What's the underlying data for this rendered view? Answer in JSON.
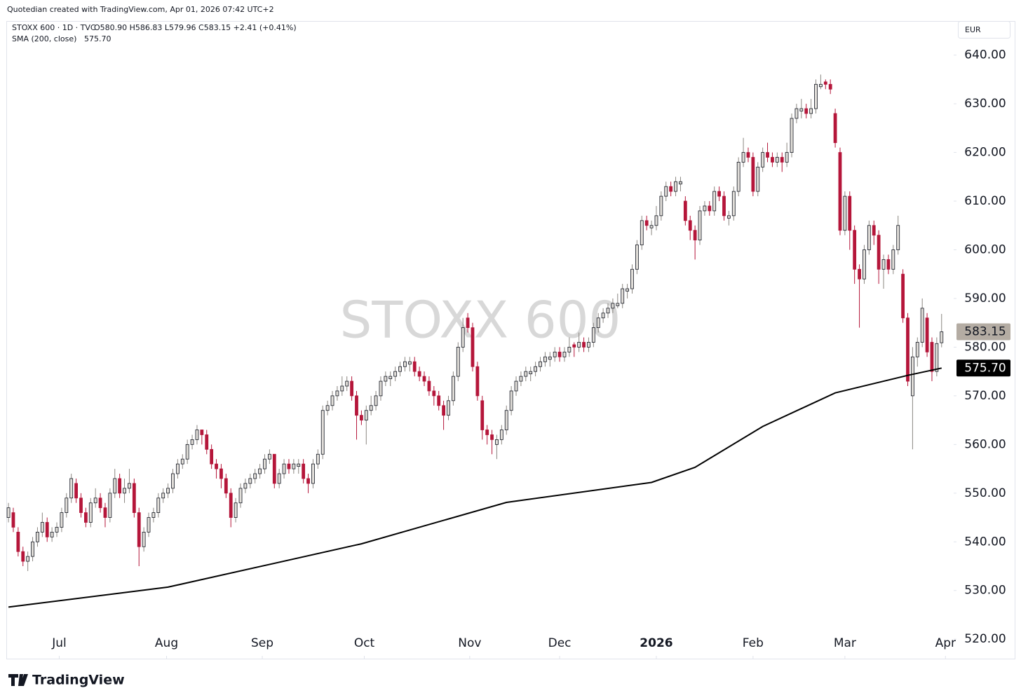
{
  "chart_data": {
    "type": "candlestick",
    "credit": "Quotedian created with TradingView.com, Apr 01, 2026 07:42 UTC+2",
    "symbol": "STOXX 600 · 1D · TVC",
    "ohlc_text": "O580.90 H586.83 L579.96 C583.15 +2.41 (+0.41%)",
    "sma_name": "SMA (200, close)",
    "sma_text": "575.70",
    "currency": "EUR",
    "watermark": "STOXX 600",
    "brand": "TradingView",
    "up_color": "#e1ded9",
    "down_color": "#b5163a",
    "sma_color": "#000000",
    "ylim": [
      516,
      647
    ],
    "yticks": [
      {
        "value": 520,
        "label": "520.00"
      },
      {
        "value": 530,
        "label": "530.00"
      },
      {
        "value": 540,
        "label": "540.00"
      },
      {
        "value": 550,
        "label": "550.00"
      },
      {
        "value": 560,
        "label": "560.00"
      },
      {
        "value": 570,
        "label": "570.00"
      },
      {
        "value": 580,
        "label": "580.00"
      },
      {
        "value": 590,
        "label": "590.00"
      },
      {
        "value": 600,
        "label": "600.00"
      },
      {
        "value": 610,
        "label": "610.00"
      },
      {
        "value": 620,
        "label": "620.00"
      },
      {
        "value": 630,
        "label": "630.00"
      },
      {
        "value": 640,
        "label": "640.00"
      }
    ],
    "xlim": [
      -0.3,
      195.5
    ],
    "xticks": [
      {
        "value": 10.5,
        "label": "Jul"
      },
      {
        "value": 32.7,
        "label": "Aug"
      },
      {
        "value": 52.5,
        "label": "Sep"
      },
      {
        "value": 73.6,
        "label": "Oct"
      },
      {
        "value": 95.4,
        "label": "Nov"
      },
      {
        "value": 114,
        "label": "Dec"
      },
      {
        "value": 134,
        "label": "2026"
      },
      {
        "value": 154,
        "label": "Feb"
      },
      {
        "value": 173,
        "label": "Mar"
      },
      {
        "value": 193.8,
        "label": "Apr"
      }
    ],
    "last_price": {
      "value": 583.15,
      "label": "583.15"
    },
    "sma_last": {
      "value": 575.7,
      "label": "575.70"
    },
    "candles": [
      [
        545,
        548,
        544,
        547
      ],
      [
        546,
        547,
        542,
        543
      ],
      [
        542,
        543,
        537,
        538
      ],
      [
        538,
        539,
        535,
        536
      ],
      [
        536,
        538,
        534,
        537
      ],
      [
        537,
        541,
        536,
        540
      ],
      [
        540,
        543,
        539,
        542
      ],
      [
        542,
        546,
        541,
        544
      ],
      [
        544,
        545,
        540,
        541
      ],
      [
        541,
        543,
        540,
        542
      ],
      [
        542,
        544,
        541,
        543
      ],
      [
        543,
        547,
        542,
        546
      ],
      [
        546,
        550,
        545,
        549
      ],
      [
        549,
        554,
        548,
        553
      ],
      [
        552,
        553,
        548,
        549
      ],
      [
        549,
        550,
        545,
        546
      ],
      [
        546,
        547,
        543,
        544
      ],
      [
        544,
        549,
        543,
        548
      ],
      [
        548,
        551,
        547,
        549
      ],
      [
        549,
        550,
        546,
        547
      ],
      [
        547,
        548,
        543,
        545
      ],
      [
        545,
        551,
        544,
        550
      ],
      [
        550,
        555,
        549,
        553
      ],
      [
        553,
        554,
        549,
        550
      ],
      [
        550,
        553,
        548,
        551
      ],
      [
        551,
        555,
        550,
        552
      ],
      [
        552,
        553,
        545,
        546
      ],
      [
        546,
        547,
        535,
        539
      ],
      [
        539,
        543,
        538,
        542
      ],
      [
        542,
        546,
        541,
        545
      ],
      [
        545,
        547,
        544,
        546
      ],
      [
        546,
        550,
        545,
        549
      ],
      [
        549,
        551,
        548,
        550
      ],
      [
        550,
        552,
        549,
        551
      ],
      [
        551,
        555,
        550,
        554
      ],
      [
        554,
        557,
        553,
        556
      ],
      [
        556,
        558,
        555,
        557
      ],
      [
        557,
        561,
        556,
        560
      ],
      [
        560,
        562,
        559,
        561
      ],
      [
        561,
        564,
        560,
        563
      ],
      [
        563,
        563,
        560,
        562
      ],
      [
        562,
        563,
        558,
        559
      ],
      [
        559,
        560,
        555,
        556
      ],
      [
        556,
        557,
        553,
        555
      ],
      [
        555,
        556,
        551,
        553
      ],
      [
        553,
        554,
        549,
        550
      ],
      [
        550,
        551,
        543,
        545
      ],
      [
        545,
        549,
        544,
        548
      ],
      [
        548,
        552,
        547,
        551
      ],
      [
        551,
        553,
        550,
        552
      ],
      [
        552,
        554,
        551,
        553
      ],
      [
        553,
        555,
        552,
        554
      ],
      [
        554,
        556,
        553,
        555
      ],
      [
        555,
        558,
        554,
        557
      ],
      [
        557,
        559,
        556,
        558
      ],
      [
        558,
        558,
        551,
        552
      ],
      [
        552,
        555,
        551,
        554
      ],
      [
        554,
        557,
        553,
        556
      ],
      [
        556,
        557,
        554,
        555
      ],
      [
        555,
        557,
        554,
        556
      ],
      [
        555.5,
        557,
        554,
        556
      ],
      [
        556,
        557,
        552,
        553
      ],
      [
        553,
        554,
        550,
        552
      ],
      [
        552,
        557,
        551,
        556
      ],
      [
        556,
        559,
        555,
        558
      ],
      [
        558,
        568,
        557,
        567
      ],
      [
        567,
        569,
        566,
        568
      ],
      [
        568,
        571,
        567,
        570
      ],
      [
        570,
        572,
        569,
        571
      ],
      [
        571,
        574,
        570,
        572
      ],
      [
        572,
        574,
        571,
        573
      ],
      [
        573,
        574,
        569,
        570
      ],
      [
        570,
        571,
        561,
        566
      ],
      [
        566,
        567,
        564,
        565
      ],
      [
        565,
        568,
        560,
        567
      ],
      [
        567,
        570,
        566,
        568
      ],
      [
        568,
        571,
        567,
        570
      ],
      [
        570,
        574,
        569,
        573
      ],
      [
        573,
        575,
        572,
        574
      ],
      [
        573.5,
        575,
        572,
        574
      ],
      [
        574,
        576,
        573,
        575
      ],
      [
        575,
        577,
        574,
        576
      ],
      [
        576,
        578,
        575,
        577
      ],
      [
        576.5,
        578,
        575,
        577
      ],
      [
        577,
        578,
        574,
        575
      ],
      [
        575,
        576,
        573,
        574
      ],
      [
        574,
        575,
        572,
        573
      ],
      [
        573,
        574,
        570,
        571
      ],
      [
        571,
        572,
        568,
        570
      ],
      [
        570,
        571,
        567,
        568
      ],
      [
        568,
        569,
        563,
        566
      ],
      [
        566,
        570,
        565,
        569
      ],
      [
        569,
        575,
        568,
        574
      ],
      [
        574,
        581,
        573,
        580
      ],
      [
        580,
        586,
        579,
        584
      ],
      [
        586,
        587,
        583,
        584
      ],
      [
        584,
        585,
        575,
        576
      ],
      [
        576,
        577,
        569,
        570
      ],
      [
        569,
        570,
        561,
        563
      ],
      [
        563,
        564,
        560,
        562
      ],
      [
        562,
        563,
        558,
        561
      ],
      [
        560,
        562,
        557,
        561
      ],
      [
        561,
        564,
        560,
        563
      ],
      [
        563,
        568,
        562,
        567
      ],
      [
        567,
        572,
        566,
        571
      ],
      [
        571,
        574,
        570,
        573
      ],
      [
        573,
        575,
        572,
        574
      ],
      [
        574,
        576,
        573,
        575
      ],
      [
        574.5,
        576,
        573,
        575
      ],
      [
        575,
        577,
        574,
        576
      ],
      [
        576,
        578,
        575,
        577
      ],
      [
        577,
        579,
        576,
        578
      ],
      [
        577.5,
        579,
        576,
        578
      ],
      [
        578,
        580,
        577,
        579
      ],
      [
        579,
        580,
        577,
        578
      ],
      [
        578,
        580,
        577,
        579
      ],
      [
        579,
        582,
        578,
        580
      ],
      [
        580.5,
        581,
        578,
        580
      ],
      [
        580,
        583,
        579,
        581
      ],
      [
        581,
        582,
        579,
        580
      ],
      [
        580,
        582,
        579,
        581
      ],
      [
        581,
        585,
        580,
        584
      ],
      [
        584,
        587,
        583,
        586
      ],
      [
        586,
        588,
        585,
        587
      ],
      [
        587,
        589,
        586,
        588
      ],
      [
        588,
        590,
        587,
        589
      ],
      [
        588.5,
        591,
        588,
        589
      ],
      [
        589,
        593,
        588,
        592
      ],
      [
        591.5,
        593,
        590,
        592
      ],
      [
        592,
        597,
        591,
        596
      ],
      [
        596,
        602,
        595,
        601
      ],
      [
        601,
        607,
        600,
        606
      ],
      [
        606,
        607,
        604,
        605
      ],
      [
        604.5,
        606,
        603,
        605
      ],
      [
        605,
        609,
        604,
        607
      ],
      [
        607,
        612,
        606,
        611
      ],
      [
        611,
        614,
        610,
        613
      ],
      [
        613,
        614,
        611,
        612
      ],
      [
        612,
        615,
        611,
        614
      ],
      [
        613.5,
        615,
        612,
        614
      ],
      [
        610,
        611,
        605,
        606
      ],
      [
        606,
        607,
        602,
        604
      ],
      [
        604,
        605,
        598,
        602
      ],
      [
        602,
        609,
        601,
        608
      ],
      [
        608,
        610,
        607,
        609
      ],
      [
        609,
        610,
        607,
        608
      ],
      [
        608,
        613,
        607,
        612
      ],
      [
        612,
        613,
        610,
        611
      ],
      [
        611,
        612,
        606,
        607
      ],
      [
        606.5,
        608,
        605,
        607
      ],
      [
        607,
        613,
        606,
        612
      ],
      [
        612,
        619,
        611,
        618
      ],
      [
        618,
        623,
        617,
        620
      ],
      [
        620,
        621,
        618,
        619
      ],
      [
        619,
        620,
        611,
        612
      ],
      [
        612,
        618,
        611,
        617
      ],
      [
        617,
        621,
        616,
        620
      ],
      [
        620,
        622,
        618,
        619
      ],
      [
        619,
        620,
        617,
        618
      ],
      [
        618,
        620,
        617,
        619
      ],
      [
        619,
        620,
        616,
        618
      ],
      [
        618,
        622,
        617,
        620
      ],
      [
        620,
        628,
        619,
        627
      ],
      [
        627,
        630,
        626,
        629
      ],
      [
        628.5,
        631,
        627,
        629
      ],
      [
        629,
        630,
        627,
        628
      ],
      [
        628,
        631,
        627,
        629
      ],
      [
        629,
        635,
        628,
        634
      ],
      [
        633.5,
        636,
        633,
        634
      ],
      [
        634.5,
        635,
        633,
        634
      ],
      [
        634,
        635,
        632,
        633
      ],
      [
        628,
        629,
        621,
        622
      ],
      [
        620,
        621,
        603,
        604
      ],
      [
        604,
        612,
        603,
        611
      ],
      [
        611,
        612,
        600,
        604
      ],
      [
        604,
        605,
        593,
        596
      ],
      [
        596,
        597,
        584,
        594
      ],
      [
        594,
        601,
        593,
        600
      ],
      [
        600,
        606,
        599,
        605
      ],
      [
        605,
        606,
        601,
        603
      ],
      [
        603,
        604,
        593,
        596
      ],
      [
        596,
        599,
        592,
        598
      ],
      [
        598,
        599,
        595,
        596
      ],
      [
        596,
        601,
        595,
        600
      ],
      [
        600,
        607,
        599,
        605
      ],
      [
        595,
        596,
        585,
        586
      ],
      [
        586,
        587,
        572,
        573
      ],
      [
        570,
        580,
        559,
        578
      ],
      [
        578,
        582,
        576,
        581
      ],
      [
        581,
        590,
        580,
        588
      ],
      [
        586,
        587,
        578,
        579
      ],
      [
        581,
        582,
        573,
        575
      ],
      [
        575,
        582,
        574,
        580.74
      ],
      [
        580.9,
        586.83,
        579.96,
        583.15
      ]
    ],
    "sma": {
      "x": [
        0,
        33,
        73,
        103,
        133,
        142,
        156,
        171,
        186,
        193
      ],
      "values": [
        526.6,
        530.7,
        539.6,
        548.1,
        552.2,
        555.3,
        563.7,
        570.6,
        574.2,
        575.7
      ]
    }
  }
}
